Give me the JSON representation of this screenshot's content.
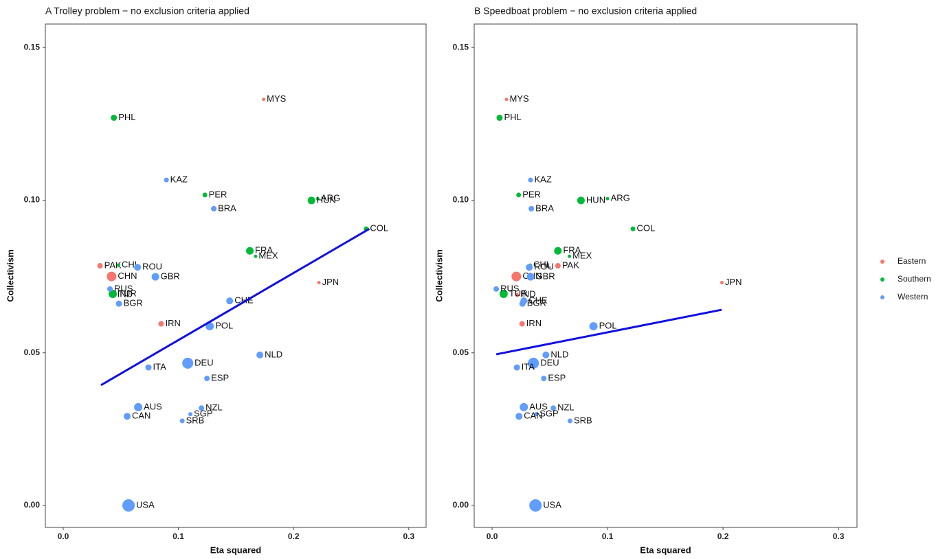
{
  "chart_data": [
    {
      "type": "scatter",
      "title": "A Trolley problem − no exclusion criteria applied",
      "x_label": "Eta squared",
      "y_label": "Collectivism",
      "xlim": [
        -0.0155,
        0.315
      ],
      "ylim": [
        -0.0072,
        0.1577
      ],
      "xticks": [
        {
          "value": 0,
          "label": "0.0"
        },
        0.1,
        0.2,
        0.3
      ],
      "yticks": [
        {
          "value": 0,
          "label": "0.00"
        },
        {
          "value": 0.05,
          "label": "0.05"
        },
        {
          "value": 0.1,
          "label": "0.10"
        },
        {
          "value": 0.15,
          "label": "0.15"
        }
      ],
      "trend": {
        "color": "#1010e0",
        "x": [
          0.0328,
          0.2657
        ],
        "values": [
          0.0394,
          0.0906
        ]
      },
      "series": [
        {
          "name": "Eastern",
          "color": "#f8766d",
          "labels": [
            "MYS",
            "PAK",
            "CHN",
            "JPN",
            "IND",
            "IRN"
          ],
          "x": [
            0.174,
            0.032,
            0.042,
            0.222,
            0.044,
            0.085
          ],
          "values": [
            0.133,
            0.0785,
            0.075,
            0.073,
            0.069,
            0.0595
          ],
          "sizes": [
            2.5,
            4,
            7,
            2.5,
            3,
            4
          ]
        },
        {
          "name": "Southern",
          "color": "#00ba38",
          "labels": [
            "PHL",
            "PER",
            "ARG",
            "HUN",
            "COL",
            "FRA",
            "MEX",
            "CHL",
            "TUR"
          ],
          "x": [
            0.044,
            0.123,
            0.221,
            0.2155,
            0.263,
            0.162,
            0.167,
            0.048,
            0.043
          ],
          "values": [
            0.127,
            0.1017,
            0.1005,
            0.0999,
            0.0906,
            0.0834,
            0.0816,
            0.0787,
            0.0693
          ],
          "sizes": [
            4.5,
            3.5,
            2.5,
            5.5,
            3.5,
            5.5,
            2.5,
            2.5,
            6
          ]
        },
        {
          "name": "Western",
          "color": "#619cff",
          "labels": [
            "KAZ",
            "BRA",
            "ROU",
            "GBR",
            "RUS",
            "BGR",
            "CHE",
            "POL",
            "NLD",
            "DEU",
            "ITA",
            "ESP",
            "AUS",
            "NZL",
            "SGP",
            "CAN",
            "SRB",
            "USA"
          ],
          "x": [
            0.0896,
            0.1307,
            0.0645,
            0.08,
            0.0406,
            0.0484,
            0.1445,
            0.1272,
            0.1707,
            0.1081,
            0.074,
            0.1248,
            0.0651,
            0.12,
            0.1104,
            0.0555,
            0.1033,
            0.0567
          ],
          "values": [
            0.1066,
            0.0972,
            0.078,
            0.0749,
            0.0709,
            0.0661,
            0.067,
            0.0587,
            0.0493,
            0.0466,
            0.0452,
            0.0416,
            0.0322,
            0.0319,
            0.0299,
            0.0292,
            0.0277,
            0
          ],
          "sizes": [
            3.5,
            4,
            5,
            5.5,
            4,
            4.5,
            5,
            6,
            5,
            8,
            4.5,
            4,
            6,
            4,
            3,
            5,
            3.5,
            9
          ]
        }
      ]
    },
    {
      "type": "scatter",
      "title": "B Speedboat problem − no exclusion criteria applied",
      "x_label": "Eta squared",
      "y_label": "Collectivism",
      "xlim": [
        -0.0155,
        0.316
      ],
      "ylim": [
        -0.0072,
        0.1577
      ],
      "xticks": [
        {
          "value": 0,
          "label": "0.0"
        },
        0.1,
        0.2,
        0.3
      ],
      "yticks": [
        {
          "value": 0,
          "label": "0.00"
        },
        {
          "value": 0.05,
          "label": "0.05"
        },
        {
          "value": 0.1,
          "label": "0.10"
        },
        {
          "value": 0.15,
          "label": "0.15"
        }
      ],
      "trend": {
        "color": "#1010e0",
        "x": [
          0.0036,
          0.1988
        ],
        "values": [
          0.0495,
          0.0641
        ]
      },
      "series": [
        {
          "name": "Eastern",
          "color": "#f8766d",
          "labels": [
            "MYS",
            "PAK",
            "CHN",
            "JPN",
            "IND",
            "IRN"
          ],
          "x": [
            0.0125,
            0.057,
            0.021,
            0.199,
            0.0215,
            0.026
          ],
          "values": [
            0.133,
            0.0785,
            0.075,
            0.073,
            0.069,
            0.0595
          ],
          "sizes": [
            2.5,
            4,
            7,
            2.5,
            3,
            4
          ]
        },
        {
          "name": "Southern",
          "color": "#00ba38",
          "labels": [
            "PHL",
            "PER",
            "ARG",
            "HUN",
            "COL",
            "FRA",
            "MEX",
            "CHL",
            "TUR"
          ],
          "x": [
            0.0065,
            0.023,
            0.1,
            0.077,
            0.122,
            0.057,
            0.067,
            0.033,
            0.01
          ],
          "values": [
            0.127,
            0.1017,
            0.1005,
            0.0999,
            0.0906,
            0.0834,
            0.0816,
            0.0787,
            0.0693
          ],
          "sizes": [
            4.5,
            3.5,
            2.5,
            5.5,
            3.5,
            5.5,
            2.5,
            2.5,
            6
          ]
        },
        {
          "name": "Western",
          "color": "#619cff",
          "labels": [
            "KAZ",
            "BRA",
            "ROU",
            "GBR",
            "RUS",
            "BGR",
            "CHE",
            "POL",
            "NLD",
            "DEU",
            "ITA",
            "ESP",
            "AUS",
            "NZL",
            "SGP",
            "CAN",
            "SRB",
            "USA"
          ],
          "x": [
            0.0333,
            0.034,
            0.0322,
            0.0333,
            0.0036,
            0.0263,
            0.0275,
            0.0878,
            0.0466,
            0.0358,
            0.0215,
            0.0448,
            0.0275,
            0.053,
            0.0382,
            0.0233,
            0.0675,
            0.0376
          ],
          "values": [
            0.1066,
            0.0972,
            0.078,
            0.0749,
            0.0709,
            0.0661,
            0.067,
            0.0587,
            0.0493,
            0.0466,
            0.0452,
            0.0416,
            0.0322,
            0.0319,
            0.0299,
            0.0292,
            0.0277,
            0
          ],
          "sizes": [
            3.5,
            4,
            5,
            5.5,
            4,
            4.5,
            5,
            6,
            5,
            8,
            4.5,
            4,
            6,
            4,
            3,
            5,
            3.5,
            9
          ]
        }
      ]
    }
  ]
}
